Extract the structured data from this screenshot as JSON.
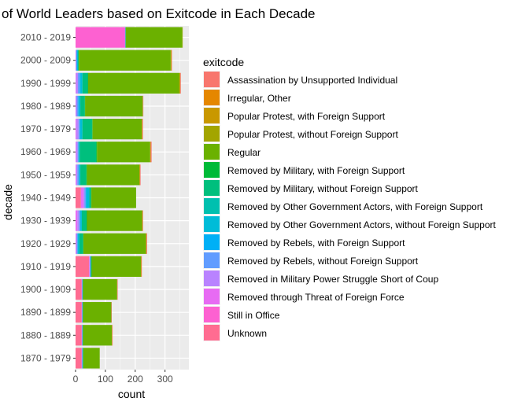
{
  "chart_data": {
    "type": "bar",
    "orientation": "horizontal",
    "stacked": true,
    "title": "of World Leaders based on Exitcode in Each Decade",
    "xlabel": "count",
    "ylabel": "decade",
    "xlim": [
      0,
      380
    ],
    "xticks": [
      0,
      100,
      200,
      300
    ],
    "grid": true,
    "legend_position": "right",
    "legend_title": "exitcode",
    "categories": [
      "2010 - 2019",
      "2000 - 2009",
      "1990 - 1999",
      "1980 - 1989",
      "1970 - 1979",
      "1960 - 1969",
      "1950 - 1959",
      "1940 - 1949",
      "1930 - 1939",
      "1920 - 1929",
      "1910 - 1919",
      "1900 - 1909",
      "1890 - 1899",
      "1880 - 1889",
      "1870 - 1979"
    ],
    "series": [
      {
        "name": "Assassination by Unsupported Individual",
        "color": "#F8766D",
        "values": [
          0,
          1,
          2,
          1,
          2,
          3,
          2,
          0,
          1,
          2,
          1,
          1,
          1,
          1,
          0
        ]
      },
      {
        "name": "Irregular, Other",
        "color": "#E58700",
        "values": [
          0,
          1,
          1,
          0,
          1,
          1,
          1,
          0,
          1,
          1,
          1,
          0,
          0,
          1,
          0
        ]
      },
      {
        "name": "Popular Protest, with Foreign Support",
        "color": "#C99800",
        "values": [
          0,
          0,
          0,
          0,
          0,
          0,
          0,
          0,
          0,
          0,
          0,
          0,
          0,
          0,
          0
        ]
      },
      {
        "name": "Popular Protest, without Foreign Support",
        "color": "#A3A500",
        "values": [
          1,
          2,
          3,
          1,
          1,
          1,
          1,
          0,
          1,
          1,
          1,
          1,
          0,
          0,
          0
        ]
      },
      {
        "name": "Regular",
        "color": "#6BB100",
        "values": [
          190,
          308,
          305,
          193,
          165,
          178,
          176,
          150,
          185,
          210,
          165,
          114,
          95,
          97,
          55
        ]
      },
      {
        "name": "Removed by Military, with Foreign Support",
        "color": "#00BA38",
        "values": [
          0,
          0,
          1,
          1,
          1,
          3,
          2,
          1,
          1,
          0,
          1,
          0,
          0,
          0,
          0
        ]
      },
      {
        "name": "Removed by Military, without Foreign Support",
        "color": "#00BF7D",
        "values": [
          0,
          3,
          18,
          15,
          33,
          55,
          20,
          6,
          16,
          13,
          2,
          1,
          1,
          1,
          2
        ]
      },
      {
        "name": "Removed by Other Government Actors, with Foreign Support",
        "color": "#00C0AF",
        "values": [
          0,
          0,
          0,
          0,
          0,
          0,
          0,
          0,
          0,
          0,
          0,
          0,
          0,
          0,
          0
        ]
      },
      {
        "name": "Removed by Other Government Actors, without Foreign Support",
        "color": "#00BCD8",
        "values": [
          1,
          3,
          7,
          6,
          8,
          4,
          5,
          10,
          5,
          6,
          1,
          1,
          1,
          1,
          1
        ]
      },
      {
        "name": "Removed by Rebels, with Foreign Support",
        "color": "#00B0F6",
        "values": [
          0,
          1,
          2,
          1,
          1,
          0,
          0,
          2,
          0,
          0,
          0,
          0,
          0,
          0,
          0
        ]
      },
      {
        "name": "Removed by Rebels, without Foreign Support",
        "color": "#619CFF",
        "values": [
          1,
          2,
          6,
          5,
          4,
          3,
          5,
          4,
          5,
          3,
          1,
          1,
          1,
          1,
          1
        ]
      },
      {
        "name": "Removed in Military Power Struggle Short of Coup",
        "color": "#B983FF",
        "values": [
          0,
          1,
          6,
          3,
          7,
          5,
          4,
          4,
          5,
          2,
          2,
          1,
          1,
          1,
          1
        ]
      },
      {
        "name": "Removed through Threat of Foreign Force",
        "color": "#E76BF3",
        "values": [
          1,
          1,
          2,
          1,
          3,
          2,
          2,
          8,
          6,
          2,
          2,
          1,
          1,
          1,
          1
        ]
      },
      {
        "name": "Still in Office",
        "color": "#FD61D1",
        "values": [
          165,
          0,
          0,
          0,
          0,
          0,
          0,
          0,
          0,
          0,
          0,
          0,
          0,
          0,
          0
        ]
      },
      {
        "name": "Unknown",
        "color": "#FF6C91",
        "values": [
          0,
          0,
          0,
          0,
          0,
          0,
          0,
          18,
          0,
          0,
          45,
          20,
          20,
          20,
          20
        ]
      }
    ]
  }
}
